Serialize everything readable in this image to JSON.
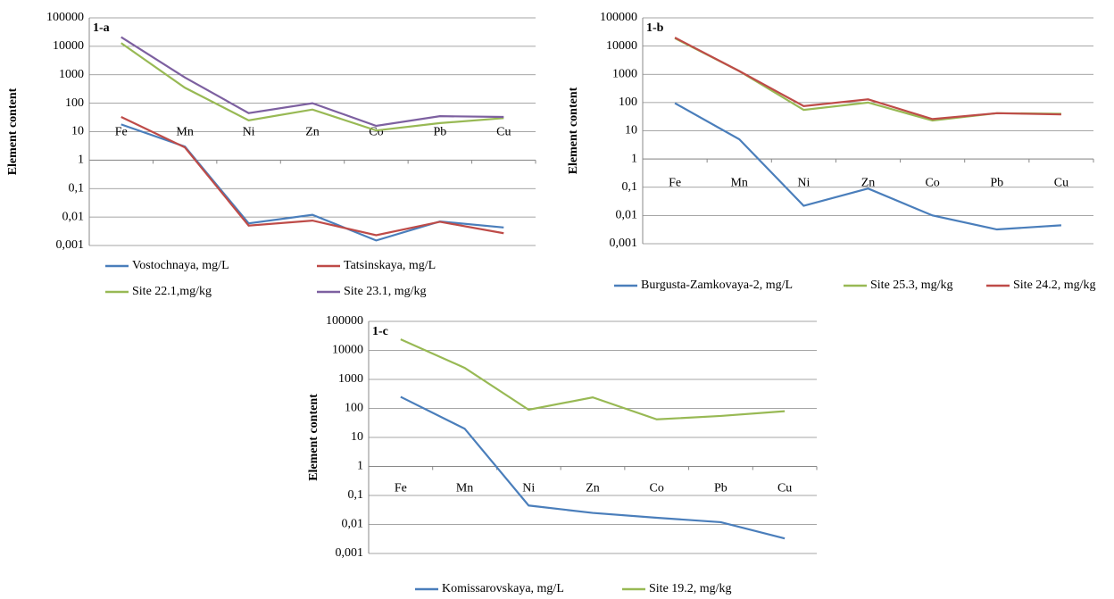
{
  "chart_data": [
    {
      "type": "line",
      "annotation": "1-a",
      "y_label": "Element content",
      "log_y": true,
      "grid": true,
      "categories": [
        "Fe",
        "Mn",
        "Ni",
        "Zn",
        "Co",
        "Pb",
        "Cu"
      ],
      "ylim": [
        0.001,
        100000
      ],
      "yticks": [
        {
          "value": 0.001,
          "label": "0,001"
        },
        {
          "value": 0.01,
          "label": "0,01"
        },
        {
          "value": 0.1,
          "label": "0,1"
        },
        1,
        10,
        100,
        1000,
        10000,
        100000
      ],
      "series": [
        {
          "name": "Vostochnaya, mg/L",
          "color": "#4a7ebb",
          "values": [
            18,
            3,
            0.006,
            0.012,
            0.0015,
            0.007,
            0.0043
          ]
        },
        {
          "name": "Tatsinskaya, mg/L",
          "color": "#be4b48",
          "values": [
            33,
            2.8,
            0.005,
            0.0075,
            0.0023,
            0.0068,
            0.0027
          ]
        },
        {
          "name": "Site 22.1,mg/kg",
          "color": "#98b954",
          "values": [
            13000,
            350,
            25,
            60,
            11,
            20,
            30
          ]
        },
        {
          "name": "Site 23.1, mg/kg",
          "color": "#7d60a0",
          "values": [
            21000,
            800,
            45,
            100,
            16,
            35,
            33
          ]
        }
      ]
    },
    {
      "type": "line",
      "annotation": "1-b",
      "y_label": "Element content",
      "log_y": true,
      "grid": true,
      "categories": [
        "Fe",
        "Mn",
        "Ni",
        "Zn",
        "Co",
        "Pb",
        "Cu"
      ],
      "ylim": [
        0.001,
        100000
      ],
      "yticks": [
        {
          "value": 0.001,
          "label": "0,001"
        },
        {
          "value": 0.01,
          "label": "0,01"
        },
        {
          "value": 0.1,
          "label": "0,1"
        },
        1,
        10,
        100,
        1000,
        10000,
        100000
      ],
      "series": [
        {
          "name": "Burgusta-Zamkovaya-2, mg/L",
          "color": "#4a7ebb",
          "values": [
            95,
            5,
            0.022,
            0.09,
            0.01,
            0.0032,
            0.0045
          ]
        },
        {
          "name": "Site 25.3, mg/kg",
          "color": "#98b954",
          "values": [
            19000,
            1300,
            55,
            100,
            23,
            42,
            40
          ]
        },
        {
          "name": "Site 24.2, mg/kg",
          "color": "#be4b48",
          "values": [
            20000,
            1300,
            75,
            130,
            26,
            42,
            38
          ]
        }
      ]
    },
    {
      "type": "line",
      "annotation": "1-c",
      "y_label": "Element content",
      "log_y": true,
      "grid": true,
      "categories": [
        "Fe",
        "Mn",
        "Ni",
        "Zn",
        "Co",
        "Pb",
        "Cu"
      ],
      "ylim": [
        0.001,
        100000
      ],
      "yticks": [
        {
          "value": 0.001,
          "label": "0,001"
        },
        {
          "value": 0.01,
          "label": "0,01"
        },
        {
          "value": 0.1,
          "label": "0,1"
        },
        1,
        10,
        100,
        1000,
        10000,
        100000
      ],
      "series": [
        {
          "name": "Komissarovskaya, mg/L",
          "color": "#4a7ebb",
          "values": [
            250,
            20,
            0.045,
            0.025,
            0.017,
            0.012,
            0.0033
          ]
        },
        {
          "name": "Site 19.2, mg/kg",
          "color": "#98b954",
          "values": [
            24000,
            2500,
            90,
            240,
            42,
            55,
            80
          ]
        }
      ]
    }
  ]
}
